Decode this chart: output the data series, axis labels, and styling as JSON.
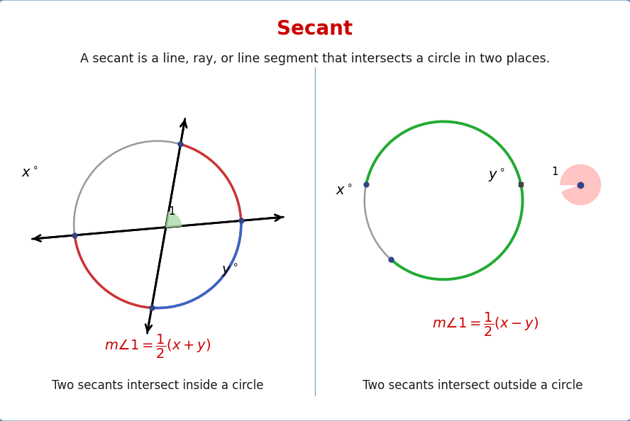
{
  "title": "Secant",
  "title_color": "#cc0000",
  "subtitle": "A secant is a line, ray, or line segment that intersects a circle in two places.",
  "background_color": "#ffffff",
  "border_color": "#5588bb",
  "left_label": "Two secants intersect inside a circle",
  "right_label": "Two secants intersect outside a circle",
  "left_formula": "$m\\angle 1=\\dfrac{1}{2}(x+y)$",
  "right_formula": "$m\\angle 1=\\dfrac{1}{2}(x-y)$",
  "formula_color": "#cc0000",
  "divider_color": "#88aacc",
  "text_color": "#1a1a1a"
}
